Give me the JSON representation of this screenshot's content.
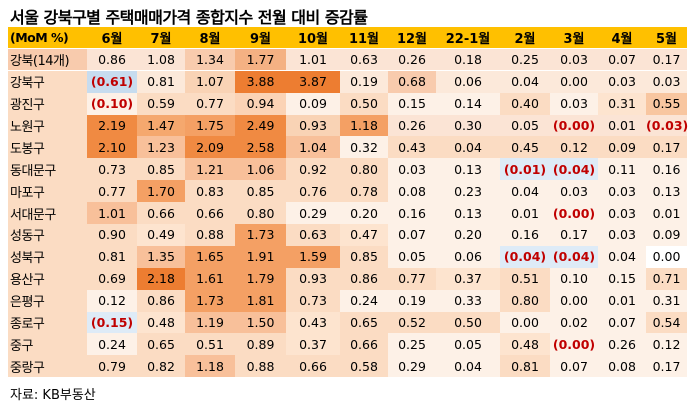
{
  "title": "서울 강북구별 주택매매가격 종합지수 전월 대비 증감률",
  "source": "자료: KB부동산",
  "chart_data": {
    "type": "table",
    "corner_label": "(MoM %)",
    "columns": [
      "6월",
      "7월",
      "8월",
      "9월",
      "10월",
      "11월",
      "12월",
      "22-1월",
      "2월",
      "3월",
      "4월",
      "5월"
    ],
    "rows": [
      {
        "label": "강북(14개)",
        "values": [
          "0.86",
          "1.08",
          "1.34",
          "1.77",
          "1.01",
          "0.63",
          "0.26",
          "0.18",
          "0.25",
          "0.03",
          "0.07",
          "0.17"
        ],
        "colors": [
          "#fbe4d5",
          "#fbe4d5",
          "#f8cbad",
          "#f4b183",
          "#fbe4d5",
          "#fbe4d5",
          "#fbe4d5",
          "#fbe4d5",
          "#fbe4d5",
          "#fbe4d5",
          "#fbe4d5",
          "#fbe4d5"
        ]
      },
      {
        "label": "강북구",
        "values": [
          "(0.61)",
          "0.81",
          "1.07",
          "3.88",
          "3.87",
          "0.19",
          "0.68",
          "0.06",
          "0.04",
          "0.00",
          "0.03",
          "0.03"
        ],
        "colors": [
          "#c7dcef",
          "#fce9da",
          "#f9d3b5",
          "#ed7d31",
          "#ed7d31",
          "#fce9da",
          "#f8cbad",
          "#fce9da",
          "#fce9da",
          "#fce9da",
          "#fce9da",
          "#fce9da"
        ]
      },
      {
        "label": "광진구",
        "values": [
          "(0.10)",
          "0.59",
          "0.77",
          "0.94",
          "0.09",
          "0.50",
          "0.15",
          "0.14",
          "0.40",
          "0.03",
          "0.31",
          "0.55"
        ],
        "colors": [
          "#fdf1e7",
          "#fbdcc3",
          "#fbdcc3",
          "#fbd3b5",
          "#fdf1e7",
          "#fbdcc3",
          "#fdf1e7",
          "#fdf1e7",
          "#fbdcc3",
          "#fdf1e7",
          "#fde4cf",
          "#f8c6a0"
        ]
      },
      {
        "label": "노원구",
        "values": [
          "2.19",
          "1.47",
          "1.75",
          "2.49",
          "0.93",
          "1.18",
          "0.26",
          "0.30",
          "0.05",
          "(0.00)",
          "0.01",
          "(0.03)"
        ],
        "colors": [
          "#f08a42",
          "#f5a86e",
          "#f4a064",
          "#f08a42",
          "#f9d3b5",
          "#f4a064",
          "#fbe4d5",
          "#fbe4d5",
          "#fbe4d5",
          "#fbe4d5",
          "#fbe4d5",
          "#fbe4d5"
        ]
      },
      {
        "label": "도봉구",
        "values": [
          "2.10",
          "1.23",
          "2.09",
          "2.58",
          "1.04",
          "0.32",
          "0.43",
          "0.04",
          "0.45",
          "0.12",
          "0.09",
          "0.17"
        ],
        "colors": [
          "#f08a42",
          "#f8c09a",
          "#f08a42",
          "#f08a42",
          "#f8c09a",
          "#fdf1e7",
          "#fbdcc3",
          "#fbdcc3",
          "#fbdcc3",
          "#fbdcc3",
          "#fbdcc3",
          "#fbdcc3"
        ]
      },
      {
        "label": "동대문구",
        "values": [
          "0.73",
          "0.85",
          "1.21",
          "1.06",
          "0.92",
          "0.80",
          "0.03",
          "0.13",
          "(0.01)",
          "(0.04)",
          "0.11",
          "0.16"
        ],
        "colors": [
          "#fbdcc3",
          "#fbdcc3",
          "#f8c09a",
          "#f8c09a",
          "#fbdcc3",
          "#fbdcc3",
          "#fdf1e7",
          "#fdf1e7",
          "#deebf7",
          "#deebf7",
          "#fdf1e7",
          "#fdf1e7"
        ]
      },
      {
        "label": "마포구",
        "values": [
          "0.77",
          "1.70",
          "0.83",
          "0.85",
          "0.76",
          "0.78",
          "0.08",
          "0.23",
          "0.04",
          "0.03",
          "0.03",
          "0.13"
        ],
        "colors": [
          "#fbdcc3",
          "#f4a064",
          "#fbdcc3",
          "#fbdcc3",
          "#fbdcc3",
          "#fbdcc3",
          "#fdf1e7",
          "#fdf1e7",
          "#fdf1e7",
          "#fdf1e7",
          "#fdf1e7",
          "#fdf1e7"
        ]
      },
      {
        "label": "서대문구",
        "values": [
          "1.01",
          "0.66",
          "0.66",
          "0.80",
          "0.29",
          "0.20",
          "0.16",
          "0.13",
          "0.01",
          "(0.00)",
          "0.03",
          "0.01"
        ],
        "colors": [
          "#f8c09a",
          "#fbdcc3",
          "#fbdcc3",
          "#fbdcc3",
          "#fdf1e7",
          "#fdf1e7",
          "#fdf1e7",
          "#fdf1e7",
          "#fdf1e7",
          "#fdf1e7",
          "#fdf1e7",
          "#fdf1e7"
        ]
      },
      {
        "label": "성동구",
        "values": [
          "0.90",
          "0.49",
          "0.88",
          "1.73",
          "0.63",
          "0.47",
          "0.07",
          "0.20",
          "0.16",
          "0.17",
          "0.03",
          "0.09"
        ],
        "colors": [
          "#fbdcc3",
          "#fde4cf",
          "#fbdcc3",
          "#f4a064",
          "#fbdcc3",
          "#fde4cf",
          "#fdf1e7",
          "#fdf1e7",
          "#fdf1e7",
          "#fdf1e7",
          "#fdf1e7",
          "#fdf1e7"
        ]
      },
      {
        "label": "성북구",
        "values": [
          "0.81",
          "1.35",
          "1.65",
          "1.91",
          "1.59",
          "0.85",
          "0.05",
          "0.06",
          "(0.04)",
          "(0.04)",
          "0.04",
          "0.00"
        ],
        "colors": [
          "#fbdcc3",
          "#f8c09a",
          "#f4a064",
          "#f4a064",
          "#f4a064",
          "#fbdcc3",
          "#fdf1e7",
          "#fdf1e7",
          "#deebf7",
          "#deebf7",
          "#fdf1e7",
          "#ffffff"
        ]
      },
      {
        "label": "용산구",
        "values": [
          "0.69",
          "2.18",
          "1.61",
          "1.79",
          "0.93",
          "0.86",
          "0.77",
          "0.37",
          "0.51",
          "0.10",
          "0.15",
          "0.71"
        ],
        "colors": [
          "#fbdcc3",
          "#ed7d31",
          "#f4a064",
          "#f4a064",
          "#fbdcc3",
          "#fbdcc3",
          "#fbdcc3",
          "#fde4cf",
          "#fbdcc3",
          "#fdf1e7",
          "#fdf1e7",
          "#fbdcc3"
        ]
      },
      {
        "label": "은평구",
        "values": [
          "0.12",
          "0.86",
          "1.73",
          "1.81",
          "0.73",
          "0.24",
          "0.19",
          "0.33",
          "0.80",
          "0.00",
          "0.01",
          "0.31"
        ],
        "colors": [
          "#fdf1e7",
          "#fbdcc3",
          "#f4a064",
          "#f4a064",
          "#fbdcc3",
          "#fdf1e7",
          "#fdf1e7",
          "#fdf1e7",
          "#fbdcc3",
          "#fdf1e7",
          "#fdf1e7",
          "#fdf1e7"
        ]
      },
      {
        "label": "종로구",
        "values": [
          "(0.15)",
          "0.48",
          "1.19",
          "1.50",
          "0.43",
          "0.65",
          "0.52",
          "0.50",
          "0.00",
          "0.02",
          "0.07",
          "0.54"
        ],
        "colors": [
          "#deebf7",
          "#fde4cf",
          "#f8c09a",
          "#f8c09a",
          "#fde4cf",
          "#fbdcc3",
          "#fbdcc3",
          "#fbdcc3",
          "#fdf1e7",
          "#fdf1e7",
          "#fdf1e7",
          "#fbdcc3"
        ]
      },
      {
        "label": "중구",
        "values": [
          "0.24",
          "0.65",
          "0.51",
          "0.89",
          "0.37",
          "0.66",
          "0.25",
          "0.05",
          "0.48",
          "(0.00)",
          "0.26",
          "0.12"
        ],
        "colors": [
          "#fdf1e7",
          "#fbdcc3",
          "#fbdcc3",
          "#fbdcc3",
          "#fde4cf",
          "#fbdcc3",
          "#fdf1e7",
          "#fdf1e7",
          "#fde4cf",
          "#fdf1e7",
          "#fdf1e7",
          "#fdf1e7"
        ]
      },
      {
        "label": "중랑구",
        "values": [
          "0.79",
          "0.82",
          "1.18",
          "0.88",
          "0.66",
          "0.58",
          "0.29",
          "0.04",
          "0.81",
          "0.07",
          "0.08",
          "0.17"
        ],
        "colors": [
          "#fbdcc3",
          "#fbdcc3",
          "#f8c09a",
          "#fbdcc3",
          "#fbdcc3",
          "#fbdcc3",
          "#fdf1e7",
          "#fdf1e7",
          "#fbdcc3",
          "#fdf1e7",
          "#fdf1e7",
          "#fdf1e7"
        ]
      }
    ]
  }
}
